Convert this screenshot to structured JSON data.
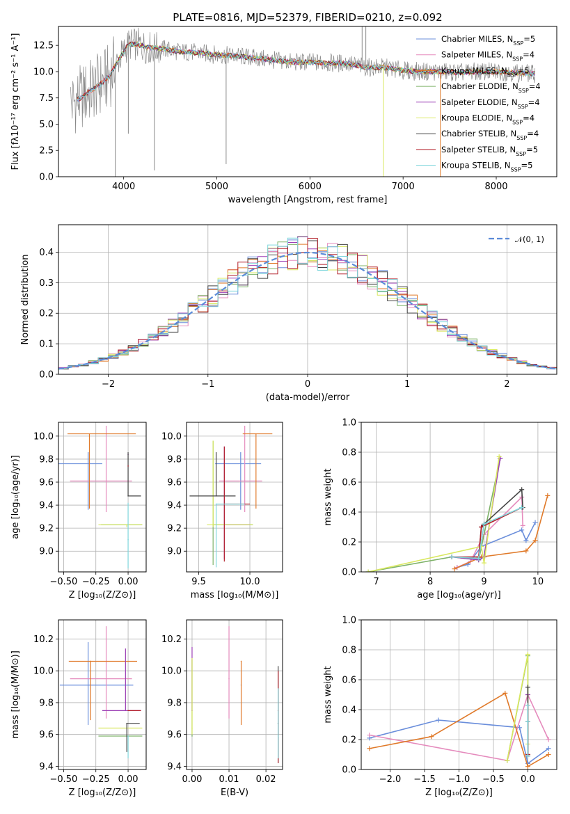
{
  "colors": {
    "Chabrier MILES": "#6a8edb",
    "Salpeter MILES": "#e58bbd",
    "Kroupa MILES": "#e07a2a",
    "Chabrier ELODIE": "#7fb36a",
    "Salpeter ELODIE": "#9b3fb5",
    "Kroupa ELODIE": "#d9e860",
    "Chabrier STELIB": "#444444",
    "Salpeter STELIB": "#b3202a",
    "Kroupa STELIB": "#7fd6dc",
    "gaussian": "#5b8bd8",
    "grid": "#b0b0b0"
  },
  "chart_data": [
    {
      "type": "line",
      "title": "PLATE=0816, MJD=52379, FIBERID=0210, z=0.092",
      "xlabel": "wavelength [Angstrom, rest frame]",
      "ylabel": "Flux [fλ10⁻¹⁷ erg cm⁻² s⁻¹ A⁻¹]",
      "xlim": [
        3300,
        8650
      ],
      "ylim": [
        0,
        14.3
      ],
      "xticks": [
        "4000",
        "5000",
        "6000",
        "7000",
        "8000"
      ],
      "yticks": [
        "0.0",
        "2.5",
        "5.0",
        "7.5",
        "10.0",
        "12.5"
      ],
      "legend_position": "top-right",
      "legend": [
        {
          "label": "Chabrier MILES, N",
          "sub": "SSP",
          "value": "=5"
        },
        {
          "label": "Salpeter MILES, N",
          "sub": "SSP",
          "value": "=4"
        },
        {
          "label": "Kroupa MILES, N",
          "sub": "SSP",
          "value": "=5"
        },
        {
          "label": "Chabrier ELODIE, N",
          "sub": "SSP",
          "value": "=4"
        },
        {
          "label": "Salpeter ELODIE, N",
          "sub": "SSP",
          "value": "=4"
        },
        {
          "label": "Kroupa ELODIE, N",
          "sub": "SSP",
          "value": "=4"
        },
        {
          "label": "Chabrier STELIB, N",
          "sub": "SSP",
          "value": "=4"
        },
        {
          "label": "Salpeter STELIB, N",
          "sub": "SSP",
          "value": "=5"
        },
        {
          "label": "Kroupa STELIB, N",
          "sub": "SSP",
          "value": "=5"
        }
      ],
      "continuum": {
        "x": [
          3450,
          3550,
          3650,
          3750,
          3850,
          3950,
          4050,
          4150,
          4250,
          4400,
          4600,
          4800,
          5000,
          5200,
          5400,
          5600,
          5800,
          6000,
          6200,
          6400,
          6600,
          6800,
          7000,
          7200,
          7400,
          7600,
          7800,
          8000,
          8200,
          8400
        ],
        "y": [
          7.0,
          7.6,
          8.2,
          8.8,
          9.6,
          11.2,
          12.6,
          12.6,
          12.3,
          12.2,
          11.9,
          11.8,
          11.6,
          11.5,
          11.3,
          11.1,
          10.9,
          10.9,
          10.8,
          10.8,
          10.4,
          10.4,
          10.1,
          10.0,
          10.0,
          9.9,
          10.0,
          10.0,
          9.9,
          9.8
        ]
      }
    },
    {
      "type": "bar",
      "xlabel": "(data-model)/error",
      "ylabel": "Normed distribution",
      "xlim": [
        -2.5,
        2.5
      ],
      "ylim": [
        0,
        0.49
      ],
      "xticks": [
        "−2",
        "−1",
        "0",
        "1",
        "2"
      ],
      "yticks": [
        "0.0",
        "0.1",
        "0.2",
        "0.3",
        "0.4"
      ],
      "legend": [
        {
          "label": "𝒩(0, 1)"
        }
      ],
      "legend_position": "top-right",
      "bin_width": 0.1
    },
    {
      "type": "scatter",
      "xlabel": "Z [log₁₀(Z/Z⊙)]",
      "ylabel": "age  [log₁₀(age/yr)]",
      "xlim": [
        -0.54,
        0.14
      ],
      "ylim": [
        8.82,
        10.12
      ],
      "xticks": [
        "−0.50",
        "−0.25",
        "0.00"
      ],
      "yticks": [
        "9.0",
        "9.2",
        "9.4",
        "9.6",
        "9.8",
        "10.0"
      ],
      "points": [
        {
          "model": "Chabrier MILES",
          "x": -0.31,
          "xerr": [
            0.26,
            0.11
          ],
          "y": 9.76,
          "yerr": [
            0.4,
            0.1
          ]
        },
        {
          "model": "Salpeter MILES",
          "x": -0.17,
          "xerr": [
            0.28,
            0.2
          ],
          "y": 9.61,
          "yerr": [
            0.27,
            0.48
          ]
        },
        {
          "model": "Kroupa MILES",
          "x": -0.3,
          "xerr": [
            0.17,
            0.36
          ],
          "y": 10.02,
          "yerr": [
            0.65,
            0.0
          ]
        },
        {
          "model": "Chabrier ELODIE",
          "x": -0.01,
          "xerr": [
            0.2,
            0.12
          ],
          "y": 9.23,
          "yerr": [
            0.0,
            0.0
          ]
        },
        {
          "model": "Salpeter ELODIE",
          "x": 0.0,
          "xerr": [
            0.0,
            0.0
          ],
          "y": 9.84,
          "yerr": [
            0.0,
            0.0
          ]
        },
        {
          "model": "Kroupa ELODIE",
          "x": -0.01,
          "xerr": [
            0.22,
            0.12
          ],
          "y": 9.23,
          "yerr": [
            0.02,
            0.0
          ]
        },
        {
          "model": "Chabrier STELIB",
          "x": 0.0,
          "xerr": [
            0.0,
            0.1
          ],
          "y": 9.48,
          "yerr": [
            0.0,
            0.38
          ]
        },
        {
          "model": "Salpeter STELIB",
          "x": 0.0,
          "xerr": [
            0.0,
            0.0
          ],
          "y": 9.74,
          "yerr": [
            0.0,
            0.0
          ]
        },
        {
          "model": "Kroupa STELIB",
          "x": 0.0,
          "xerr": [
            0.0,
            0.0
          ],
          "y": 9.1,
          "yerr": [
            0.25,
            0.32
          ]
        }
      ]
    },
    {
      "type": "scatter",
      "xlabel": "mass [log₁₀(M/M⊙)]",
      "xlim": [
        9.38,
        10.32
      ],
      "ylim": [
        8.82,
        10.12
      ],
      "xticks": [
        "9.5",
        "10.0"
      ],
      "yticks": [
        "9.0",
        "9.2",
        "9.4",
        "9.6",
        "9.8",
        "10.0"
      ],
      "points": [
        {
          "model": "Chabrier MILES",
          "x": 9.91,
          "xerr": [
            0.25,
            0.2
          ],
          "y": 9.76,
          "yerr": [
            0.4,
            0.1
          ]
        },
        {
          "model": "Salpeter MILES",
          "x": 9.95,
          "xerr": [
            0.25,
            0.17
          ],
          "y": 9.61,
          "yerr": [
            0.27,
            0.48
          ]
        },
        {
          "model": "Kroupa MILES",
          "x": 10.06,
          "xerr": [
            0.13,
            0.16
          ],
          "y": 10.02,
          "yerr": [
            0.65,
            0.0
          ]
        },
        {
          "model": "Chabrier ELODIE",
          "x": 9.64,
          "xerr": [
            0.0,
            0.39
          ],
          "y": 9.23,
          "yerr": [
            0.35,
            0.73
          ]
        },
        {
          "model": "Salpeter ELODIE",
          "x": 9.75,
          "xerr": [
            0.0,
            0.25
          ],
          "y": 9.23,
          "yerr": [
            0.3,
            0.68
          ]
        },
        {
          "model": "Kroupa ELODIE",
          "x": 9.64,
          "xerr": [
            0.06,
            0.39
          ],
          "y": 9.23,
          "yerr": [
            0.02,
            0.73
          ]
        },
        {
          "model": "Chabrier STELIB",
          "x": 9.67,
          "xerr": [
            0.26,
            0.19
          ],
          "y": 9.48,
          "yerr": [
            0.0,
            0.38
          ]
        },
        {
          "model": "Salpeter STELIB",
          "x": 9.75,
          "xerr": [
            0.0,
            0.25
          ],
          "y": 9.41,
          "yerr": [
            0.5,
            0.5
          ]
        },
        {
          "model": "Kroupa STELIB",
          "x": 9.67,
          "xerr": [
            0.0,
            0.28
          ],
          "y": 9.41,
          "yerr": [
            0.55,
            0.0
          ]
        }
      ]
    },
    {
      "type": "line",
      "xlabel": "age  [log₁₀(age/yr)]",
      "ylabel": "mass weight",
      "xlim": [
        6.72,
        10.35
      ],
      "ylim": [
        0,
        1.0
      ],
      "xticks": [
        "7",
        "8",
        "9",
        "10"
      ],
      "yticks": [
        "0.0",
        "0.2",
        "0.4",
        "0.6",
        "0.8",
        "1.0"
      ],
      "series": [
        {
          "model": "Chabrier MILES",
          "x": [
            8.5,
            8.7,
            8.95,
            9.7,
            9.78,
            9.95
          ],
          "y": [
            0.03,
            0.05,
            0.17,
            0.28,
            0.21,
            0.33
          ]
        },
        {
          "model": "Salpeter MILES",
          "x": [
            8.5,
            8.75,
            9.0,
            9.7,
            9.72
          ],
          "y": [
            0.03,
            0.07,
            0.25,
            0.5,
            0.31
          ]
        },
        {
          "model": "Kroupa MILES",
          "x": [
            8.45,
            8.95,
            9.78,
            9.95,
            10.18
          ],
          "y": [
            0.02,
            0.1,
            0.14,
            0.21,
            0.51
          ]
        },
        {
          "model": "Chabrier ELODIE",
          "x": [
            6.85,
            8.4,
            8.9,
            9.3
          ],
          "y": [
            0.0,
            0.1,
            0.08,
            0.76
          ]
        },
        {
          "model": "Salpeter ELODIE",
          "x": [
            8.4,
            8.9,
            9.0,
            9.3
          ],
          "y": [
            0.1,
            0.08,
            0.1,
            0.76
          ]
        },
        {
          "model": "Kroupa ELODIE",
          "x": [
            6.85,
            8.95,
            9.0,
            9.28
          ],
          "y": [
            0.0,
            0.17,
            0.06,
            0.77
          ]
        },
        {
          "model": "Chabrier STELIB",
          "x": [
            8.4,
            8.9,
            8.95,
            9.0,
            9.7,
            9.72
          ],
          "y": [
            0.1,
            0.09,
            0.3,
            0.32,
            0.55,
            0.43
          ]
        },
        {
          "model": "Salpeter STELIB",
          "x": [
            8.4,
            8.9,
            8.95,
            9.7
          ],
          "y": [
            0.1,
            0.1,
            0.3,
            0.43
          ]
        },
        {
          "model": "Kroupa STELIB",
          "x": [
            8.4,
            8.9,
            9.0,
            9.7
          ],
          "y": [
            0.1,
            0.09,
            0.32,
            0.43
          ]
        }
      ]
    },
    {
      "type": "scatter",
      "xlabel": "Z [log₁₀(Z/Z⊙)]",
      "ylabel": "mass [log₁₀(M/M⊙)]",
      "xlim": [
        -0.54,
        0.14
      ],
      "ylim": [
        9.38,
        10.32
      ],
      "xticks": [
        "−0.50",
        "−0.25",
        "0.00"
      ],
      "yticks": [
        "9.4",
        "9.6",
        "9.8",
        "10.0",
        "10.2"
      ],
      "points": [
        {
          "model": "Chabrier MILES",
          "x": -0.31,
          "xerr": [
            0.22,
            0.35
          ],
          "y": 9.91,
          "yerr": [
            0.25,
            0.27
          ]
        },
        {
          "model": "Salpeter MILES",
          "x": -0.17,
          "xerr": [
            0.28,
            0.2
          ],
          "y": 9.95,
          "yerr": [
            0.25,
            0.33
          ]
        },
        {
          "model": "Kroupa MILES",
          "x": -0.29,
          "xerr": [
            0.17,
            0.36
          ],
          "y": 10.06,
          "yerr": [
            0.37,
            0.0
          ]
        },
        {
          "model": "Chabrier ELODIE",
          "x": -0.01,
          "xerr": [
            0.22,
            0.12
          ],
          "y": 9.59,
          "yerr": [
            0.0,
            0.0
          ]
        },
        {
          "model": "Salpeter ELODIE",
          "x": -0.02,
          "xerr": [
            0.18,
            0.12
          ],
          "y": 9.75,
          "yerr": [
            0.0,
            0.39
          ]
        },
        {
          "model": "Kroupa ELODIE",
          "x": -0.01,
          "xerr": [
            0.22,
            0.12
          ],
          "y": 9.64,
          "yerr": [
            0.0,
            0.0
          ]
        },
        {
          "model": "Chabrier STELIB",
          "x": -0.01,
          "xerr": [
            0.0,
            0.1
          ],
          "y": 9.67,
          "yerr": [
            0.18,
            0.0
          ]
        },
        {
          "model": "Salpeter STELIB",
          "x": 0.0,
          "xerr": [
            0.0,
            0.1
          ],
          "y": 9.75,
          "yerr": [
            0.0,
            0.0
          ]
        },
        {
          "model": "Kroupa STELIB",
          "x": 0.0,
          "xerr": [
            0.0,
            0.0
          ],
          "y": 9.59,
          "yerr": [
            0.14,
            0.0
          ]
        }
      ]
    },
    {
      "type": "scatter",
      "xlabel": "E(B-V)",
      "xlim": [
        -0.0015,
        0.0245
      ],
      "ylim": [
        9.38,
        10.32
      ],
      "xticks": [
        "0.00",
        "0.01",
        "0.02"
      ],
      "yticks": [
        "9.4",
        "9.6",
        "9.8",
        "10.0",
        "10.2"
      ],
      "points": [
        {
          "model": "Chabrier MILES",
          "x": 0.0133,
          "y": 9.91,
          "yerr": [
            0.0,
            0.0
          ]
        },
        {
          "model": "Salpeter MILES",
          "x": 0.01,
          "y": 9.95,
          "yerr": [
            0.25,
            0.33
          ]
        },
        {
          "model": "Kroupa MILES",
          "x": 0.0133,
          "y": 10.06,
          "yerr": [
            0.4,
            0.0
          ]
        },
        {
          "model": "Chabrier ELODIE",
          "x": 0.0,
          "y": 9.59,
          "yerr": [
            0.0,
            0.48
          ]
        },
        {
          "model": "Salpeter ELODIE",
          "x": 0.0,
          "y": 9.75,
          "yerr": [
            0.0,
            0.4
          ]
        },
        {
          "model": "Kroupa ELODIE",
          "x": 0.0,
          "y": 9.64,
          "yerr": [
            0.04,
            0.44
          ]
        },
        {
          "model": "Chabrier STELIB",
          "x": 0.0233,
          "y": 9.67,
          "yerr": [
            0.25,
            0.36
          ]
        },
        {
          "model": "Salpeter STELIB",
          "x": 0.0233,
          "y": 9.75,
          "yerr": [
            0.33,
            0.25
          ]
        },
        {
          "model": "Kroupa STELIB",
          "x": 0.0233,
          "y": 9.59,
          "yerr": [
            0.14,
            0.3
          ]
        }
      ]
    },
    {
      "type": "line",
      "xlabel": "Z [log₁₀(Z/Z⊙)]",
      "ylabel": "mass weight",
      "xlim": [
        -2.42,
        0.42
      ],
      "ylim": [
        0,
        1.0
      ],
      "xticks": [
        "−2.0",
        "−1.5",
        "−1.0",
        "−0.5",
        "0.0"
      ],
      "yticks": [
        "0.0",
        "0.2",
        "0.4",
        "0.6",
        "0.8",
        "1.0"
      ],
      "series": [
        {
          "model": "Chabrier MILES",
          "x": [
            -2.3,
            -1.3,
            -0.12,
            0.0,
            0.3
          ],
          "y": [
            0.21,
            0.33,
            0.28,
            0.04,
            0.14
          ]
        },
        {
          "model": "Salpeter MILES",
          "x": [
            -2.3,
            -0.3,
            0.0,
            0.3
          ],
          "y": [
            0.23,
            0.06,
            0.5,
            0.2
          ]
        },
        {
          "model": "Kroupa MILES",
          "x": [
            -2.3,
            -1.4,
            -0.33,
            0.0,
            0.3
          ],
          "y": [
            0.14,
            0.22,
            0.51,
            0.02,
            0.1
          ]
        },
        {
          "model": "Chabrier ELODIE",
          "x": [
            -0.3,
            0.0,
            0.0
          ],
          "y": [
            0.06,
            0.76,
            0.1
          ]
        },
        {
          "model": "Salpeter ELODIE",
          "x": [
            0.0,
            0.0
          ],
          "y": [
            0.1,
            0.5
          ]
        },
        {
          "model": "Kroupa ELODIE",
          "x": [
            -0.3,
            0.0,
            0.0
          ],
          "y": [
            0.06,
            0.77,
            0.17
          ]
        },
        {
          "model": "Chabrier STELIB",
          "x": [
            0.0,
            0.0,
            0.0
          ],
          "y": [
            0.09,
            0.55,
            0.32
          ]
        },
        {
          "model": "Salpeter STELIB",
          "x": [
            0.0,
            0.0
          ],
          "y": [
            0.1,
            0.43
          ]
        },
        {
          "model": "Kroupa STELIB",
          "x": [
            0.0,
            0.0,
            0.0
          ],
          "y": [
            0.09,
            0.43,
            0.32
          ]
        }
      ]
    }
  ]
}
